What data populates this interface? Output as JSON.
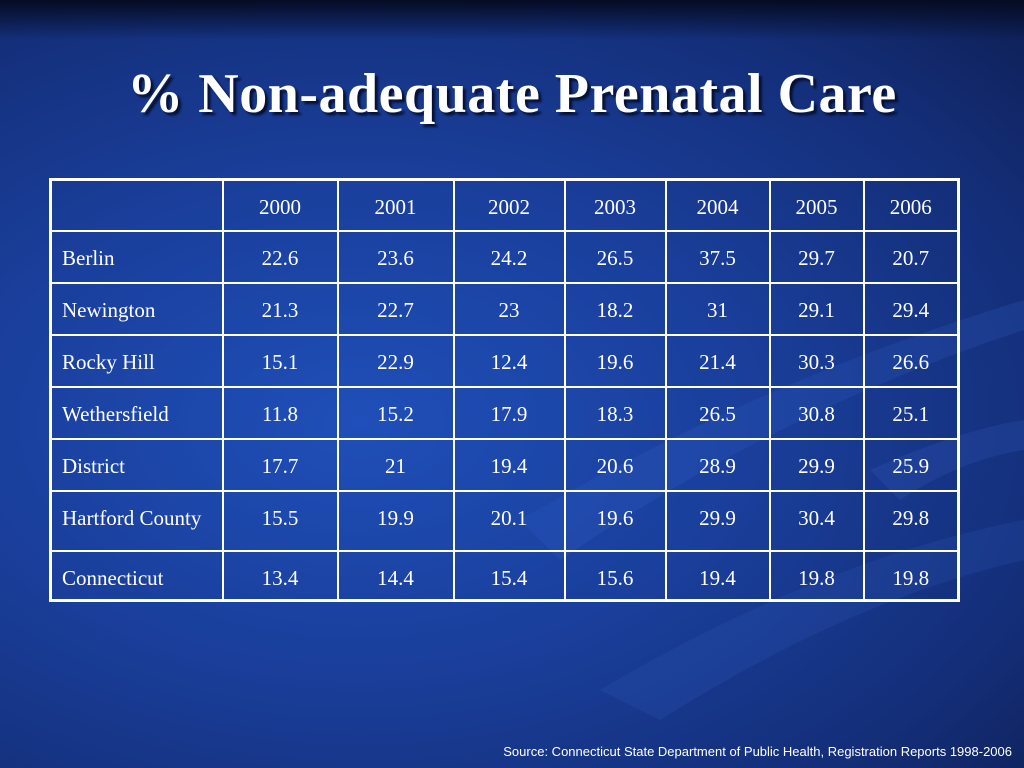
{
  "slide": {
    "title": "% Non-adequate Prenatal Care",
    "source": "Source: Connecticut State Department of Public Health, Registration Reports 1998-2006"
  },
  "table": {
    "columns": [
      "",
      "2000",
      "2001",
      "2002",
      "2003",
      "2004",
      "2005",
      "2006"
    ],
    "rows": [
      {
        "label": "Berlin",
        "values": [
          "22.6",
          "23.6",
          "24.2",
          "26.5",
          "37.5",
          "29.7",
          "20.7"
        ]
      },
      {
        "label": "Newington",
        "values": [
          "21.3",
          "22.7",
          "23",
          "18.2",
          "31",
          "29.1",
          "29.4"
        ]
      },
      {
        "label": "Rocky Hill",
        "values": [
          "15.1",
          "22.9",
          "12.4",
          "19.6",
          "21.4",
          "30.3",
          "26.6"
        ]
      },
      {
        "label": "Wethersfield",
        "values": [
          "11.8",
          "15.2",
          "17.9",
          "18.3",
          "26.5",
          "30.8",
          "25.1"
        ]
      },
      {
        "label": "District",
        "values": [
          "17.7",
          "21",
          "19.4",
          "20.6",
          "28.9",
          "29.9",
          "25.9"
        ]
      },
      {
        "label": "Hartford County",
        "values": [
          "15.5",
          "19.9",
          "20.1",
          "19.6",
          "29.9",
          "30.4",
          "29.8"
        ]
      },
      {
        "label": "Connecticut",
        "values": [
          "13.4",
          "14.4",
          "15.4",
          "15.6",
          "19.4",
          "19.8",
          "19.8"
        ]
      }
    ]
  },
  "colors": {
    "background": "#1a3f9c",
    "text": "#ffffff",
    "border": "#ffffff"
  }
}
